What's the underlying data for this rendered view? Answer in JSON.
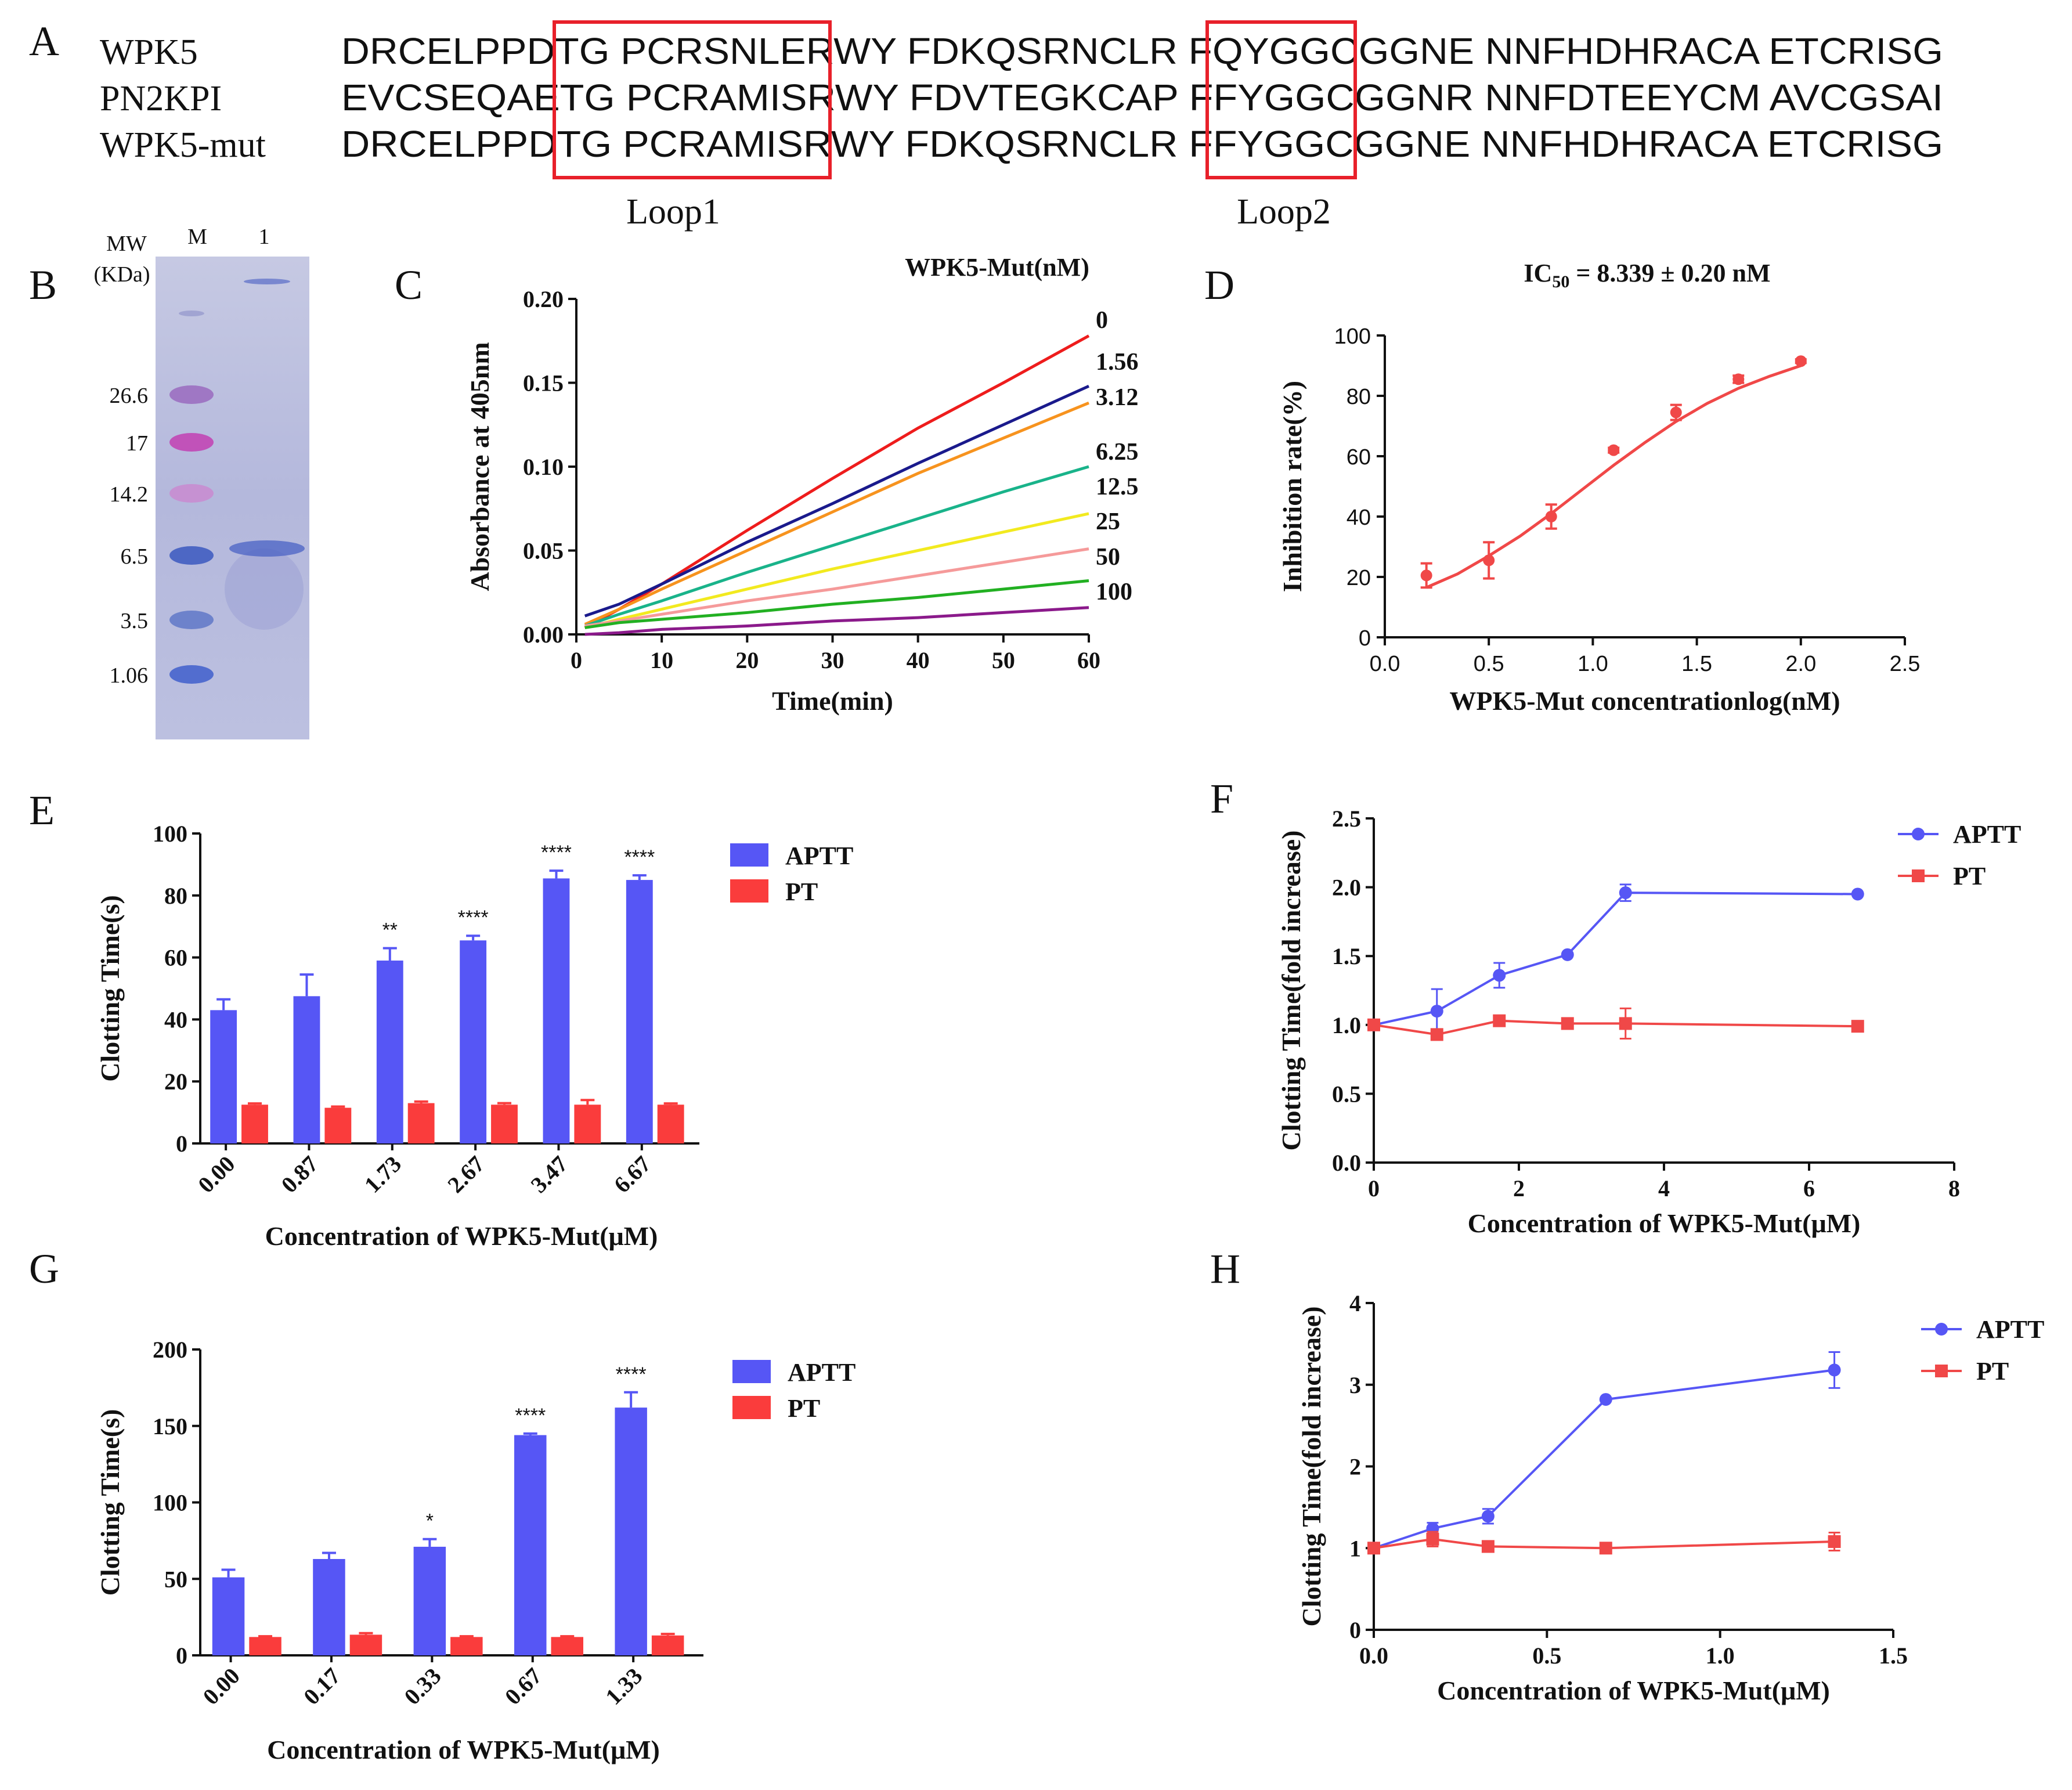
{
  "panels": {
    "A": "A",
    "B": "B",
    "C": "C",
    "D": "D",
    "E": "E",
    "F": "F",
    "G": "G",
    "H": "H"
  },
  "alignment": {
    "rows": [
      {
        "name": "WPK5",
        "seq": "DRCELPPDTG PCRSNLERWY FDKQSRNCLR FQYGGCGGNE NNFHDHRACA ETCRISG"
      },
      {
        "name": "PN2KPI",
        "seq": "EVCSEQAETG PCRAMISRWY FDVTEGKCAP  FFYGGCGGNR NNFDTEEYCM AVCGSAI"
      },
      {
        "name": "WPK5-mut",
        "seq": "DRCELPPDTG PCRAMISRWY FDKQSRNCLR FFYGGCGGNE NNFHDHRACA ETCRISG"
      }
    ],
    "loop1": "Loop1",
    "loop2": "Loop2",
    "box_color": "#e8202a"
  },
  "gel": {
    "mw_label": "MW",
    "unit_label": "(KDa)",
    "lane_labels": [
      "M",
      "1"
    ],
    "markers": [
      "26.6",
      "17",
      "14.2",
      "6.5",
      "3.5",
      "1.06"
    ]
  },
  "chart_data": [
    {
      "panel": "C",
      "type": "line",
      "title": "WPK5-Mut(nM)",
      "xlabel": "Time(min)",
      "ylabel": "Absorbance at 405nm",
      "xlim": [
        0,
        60
      ],
      "ylim": [
        0,
        0.2
      ],
      "xticks": [
        "0",
        "10",
        "20",
        "30",
        "40",
        "50",
        "60"
      ],
      "yticks": [
        "0.00",
        "0.05",
        "0.10",
        "0.15",
        "0.20"
      ],
      "series": [
        {
          "name": "0",
          "color": "#ee1c1c",
          "x": [
            1,
            5,
            10,
            20,
            30,
            40,
            50,
            60
          ],
          "y": [
            0.004,
            0.015,
            0.03,
            0.062,
            0.093,
            0.123,
            0.15,
            0.178
          ]
        },
        {
          "name": "1.56",
          "color": "#1a1a8c",
          "x": [
            1,
            5,
            10,
            20,
            30,
            40,
            50,
            60
          ],
          "y": [
            0.011,
            0.018,
            0.03,
            0.055,
            0.078,
            0.102,
            0.125,
            0.148
          ]
        },
        {
          "name": "3.12",
          "color": "#f7931e",
          "x": [
            1,
            5,
            10,
            20,
            30,
            40,
            50,
            60
          ],
          "y": [
            0.006,
            0.015,
            0.027,
            0.05,
            0.073,
            0.096,
            0.117,
            0.138
          ]
        },
        {
          "name": "6.25",
          "color": "#19b38a",
          "x": [
            1,
            5,
            10,
            20,
            30,
            40,
            50,
            60
          ],
          "y": [
            0.005,
            0.012,
            0.02,
            0.037,
            0.053,
            0.069,
            0.085,
            0.1
          ]
        },
        {
          "name": "12.5",
          "color": "#f2ea1f",
          "x": [
            1,
            5,
            10,
            20,
            30,
            40,
            50,
            60
          ],
          "y": [
            0.004,
            0.009,
            0.015,
            0.027,
            0.039,
            0.05,
            0.061,
            0.072
          ]
        },
        {
          "name": "25",
          "color": "#f59a9a",
          "x": [
            1,
            5,
            10,
            20,
            30,
            40,
            50,
            60
          ],
          "y": [
            0.005,
            0.008,
            0.012,
            0.02,
            0.027,
            0.035,
            0.043,
            0.051
          ]
        },
        {
          "name": "50",
          "color": "#22b022",
          "x": [
            1,
            5,
            10,
            20,
            30,
            40,
            50,
            60
          ],
          "y": [
            0.004,
            0.007,
            0.009,
            0.013,
            0.018,
            0.022,
            0.027,
            0.032
          ]
        },
        {
          "name": "100",
          "color": "#8b1a8b",
          "x": [
            1,
            5,
            10,
            20,
            30,
            40,
            50,
            60
          ],
          "y": [
            0.0,
            0.001,
            0.003,
            0.005,
            0.008,
            0.01,
            0.013,
            0.016
          ]
        }
      ]
    },
    {
      "panel": "D",
      "type": "scatter",
      "title": "IC",
      "title_sub": "50",
      "title_rest": " = 8.339 ± 0.20 nM",
      "xlabel": "WPK5-Mut concentrationlog(nM)",
      "ylabel": "Inhibition rate(%)",
      "xlim": [
        0,
        2.5
      ],
      "ylim": [
        0,
        100
      ],
      "xticks": [
        "0.0",
        "0.5",
        "1.0",
        "1.5",
        "2.0",
        "2.5"
      ],
      "yticks": [
        "0",
        "20",
        "40",
        "60",
        "80",
        "100"
      ],
      "color": "#f04848",
      "x": [
        0.2,
        0.5,
        0.8,
        1.1,
        1.4,
        1.7,
        2.0
      ],
      "y": [
        20.5,
        25.5,
        40,
        62,
        74.5,
        85.5,
        91.5
      ],
      "err": [
        4,
        6,
        4,
        0.8,
        2.5,
        1.2,
        0.6
      ],
      "fit_x": [
        0.2,
        0.35,
        0.5,
        0.65,
        0.8,
        0.95,
        1.1,
        1.25,
        1.4,
        1.55,
        1.7,
        1.85,
        2.0
      ],
      "fit_y": [
        16.5,
        21,
        27,
        33.5,
        41,
        49,
        57,
        64.5,
        71.5,
        77.5,
        82.5,
        86.5,
        90
      ]
    },
    {
      "panel": "E",
      "type": "bar",
      "xlabel": "Concentration of WPK5-Mut(μM)",
      "ylabel": "Clotting Time(s)",
      "ylim": [
        0,
        100
      ],
      "yticks": [
        "0",
        "20",
        "40",
        "60",
        "80",
        "100"
      ],
      "categories": [
        "0.00",
        "0.87",
        "1.73",
        "2.67",
        "3.47",
        "6.67"
      ],
      "series": [
        {
          "name": "APTT",
          "color": "#5656f5",
          "values": [
            43,
            47.5,
            59,
            65.5,
            85.5,
            85
          ],
          "err": [
            3.5,
            7,
            4,
            1.5,
            2.5,
            1.5
          ]
        },
        {
          "name": "PT",
          "color": "#fa3c3c",
          "values": [
            12.5,
            11.5,
            13,
            12.5,
            12.5,
            12.5
          ],
          "err": [
            0.4,
            0.4,
            0.5,
            0.5,
            1.5,
            0.4
          ]
        }
      ],
      "significance": [
        "",
        "",
        "**",
        "****",
        "****",
        "****"
      ]
    },
    {
      "panel": "F",
      "type": "line",
      "xlabel": "Concentration of WPK5-Mut(μM)",
      "ylabel": "Clotting Time(fold increase)",
      "xlim": [
        0,
        8
      ],
      "ylim": [
        0,
        2.5
      ],
      "xticks": [
        "0",
        "2",
        "4",
        "6",
        "8"
      ],
      "yticks": [
        "0.0",
        "0.5",
        "1.0",
        "1.5",
        "2.0",
        "2.5"
      ],
      "series": [
        {
          "name": "APTT",
          "color": "#5656f5",
          "marker": "circle",
          "x": [
            0,
            0.87,
            1.73,
            2.67,
            3.47,
            6.67
          ],
          "y": [
            1.0,
            1.1,
            1.36,
            1.51,
            1.96,
            1.95
          ],
          "err": [
            0,
            0.16,
            0.09,
            0,
            0.06,
            0
          ]
        },
        {
          "name": "PT",
          "color": "#f04848",
          "marker": "square",
          "x": [
            0,
            0.87,
            1.73,
            2.67,
            3.47,
            6.67
          ],
          "y": [
            1.0,
            0.93,
            1.03,
            1.01,
            1.01,
            0.99
          ],
          "err": [
            0,
            0.03,
            0.02,
            0.02,
            0.11,
            0
          ]
        }
      ]
    },
    {
      "panel": "G",
      "type": "bar",
      "xlabel": "Concentration of WPK5-Mut(μM)",
      "ylabel": "Clotting Time(s)",
      "ylim": [
        0,
        200
      ],
      "yticks": [
        "0",
        "50",
        "100",
        "150",
        "200"
      ],
      "categories": [
        "0.00",
        "0.17",
        "0.33",
        "0.67",
        "1.33"
      ],
      "series": [
        {
          "name": "APTT",
          "color": "#5656f5",
          "values": [
            51,
            63,
            71,
            144,
            162
          ],
          "err": [
            5,
            4,
            5,
            1,
            10
          ]
        },
        {
          "name": "PT",
          "color": "#fa3c3c",
          "values": [
            12,
            13.5,
            12,
            12,
            13
          ],
          "err": [
            0.5,
            1,
            0.5,
            0.5,
            1
          ]
        }
      ],
      "significance": [
        "",
        "",
        "*",
        "****",
        "****"
      ]
    },
    {
      "panel": "H",
      "type": "line",
      "xlabel": "Concentration of WPK5-Mut(μM)",
      "ylabel": "Clotting Time(fold increase)",
      "xlim": [
        0,
        1.5
      ],
      "ylim": [
        0,
        4
      ],
      "xticks": [
        "0.0",
        "0.5",
        "1.0",
        "1.5"
      ],
      "yticks": [
        "0",
        "1",
        "2",
        "3",
        "4"
      ],
      "series": [
        {
          "name": "APTT",
          "color": "#5656f5",
          "marker": "circle",
          "x": [
            0,
            0.17,
            0.33,
            0.67,
            1.33
          ],
          "y": [
            1.0,
            1.24,
            1.39,
            2.82,
            3.18
          ],
          "err": [
            0,
            0.07,
            0.09,
            0,
            0.22
          ]
        },
        {
          "name": "PT",
          "color": "#f04848",
          "marker": "square",
          "x": [
            0,
            0.17,
            0.33,
            0.67,
            1.33
          ],
          "y": [
            1.0,
            1.11,
            1.02,
            1.0,
            1.08
          ],
          "err": [
            0,
            0.09,
            0.02,
            0,
            0.11
          ]
        }
      ]
    }
  ]
}
